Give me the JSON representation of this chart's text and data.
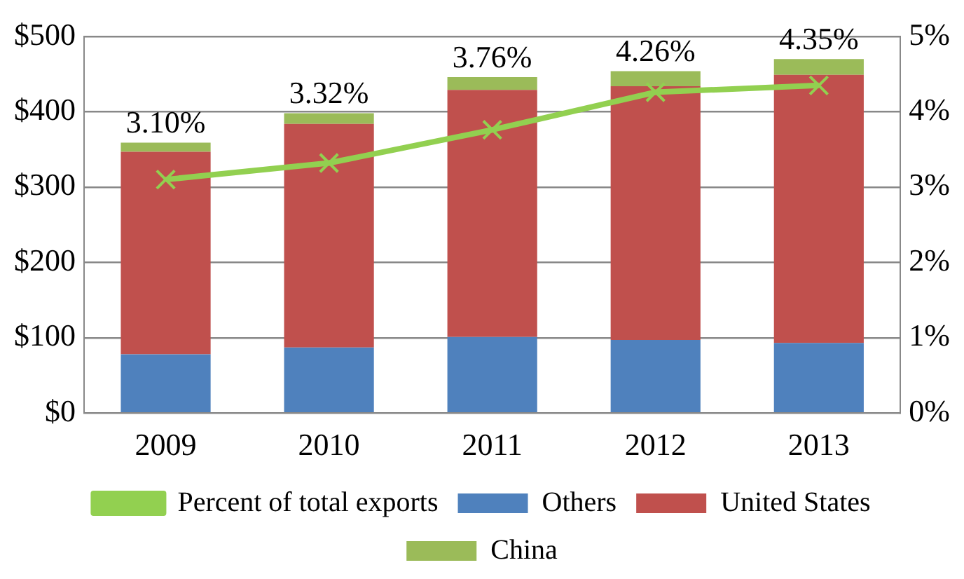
{
  "chart_data": {
    "type": "bar",
    "stacked": true,
    "categories": [
      "2009",
      "2010",
      "2011",
      "2012",
      "2013"
    ],
    "series": [
      {
        "name": "Others",
        "color": "#4f81bd",
        "values": [
          78,
          87,
          101,
          97,
          93
        ]
      },
      {
        "name": "United States",
        "color": "#c0504d",
        "values": [
          269,
          297,
          328,
          337,
          356
        ]
      },
      {
        "name": "China",
        "color": "#9bbb59",
        "values": [
          12,
          14,
          17,
          20,
          21
        ]
      },
      {
        "name": "Percent of total exports",
        "type": "line",
        "axis": "y2",
        "color": "#92d050",
        "marker": "cross",
        "values": [
          3.1,
          3.32,
          3.76,
          4.26,
          4.35
        ],
        "value_labels": [
          "3.10%",
          "3.32%",
          "3.76%",
          "4.26%",
          "4.35%"
        ]
      }
    ],
    "ylim": [
      0,
      500
    ],
    "yticks": [
      {
        "value": 0,
        "label": "$0"
      },
      {
        "value": 100,
        "label": "$100"
      },
      {
        "value": 200,
        "label": "$200"
      },
      {
        "value": 300,
        "label": "$300"
      },
      {
        "value": 400,
        "label": "$400"
      },
      {
        "value": 500,
        "label": "$500"
      }
    ],
    "y2lim": [
      0,
      5
    ],
    "y2ticks": [
      {
        "value": 0,
        "label": "0%"
      },
      {
        "value": 1,
        "label": "1%"
      },
      {
        "value": 2,
        "label": "2%"
      },
      {
        "value": 3,
        "label": "3%"
      },
      {
        "value": 4,
        "label": "4%"
      },
      {
        "value": 5,
        "label": "5%"
      }
    ],
    "grid": "y",
    "legend": "bottom"
  }
}
